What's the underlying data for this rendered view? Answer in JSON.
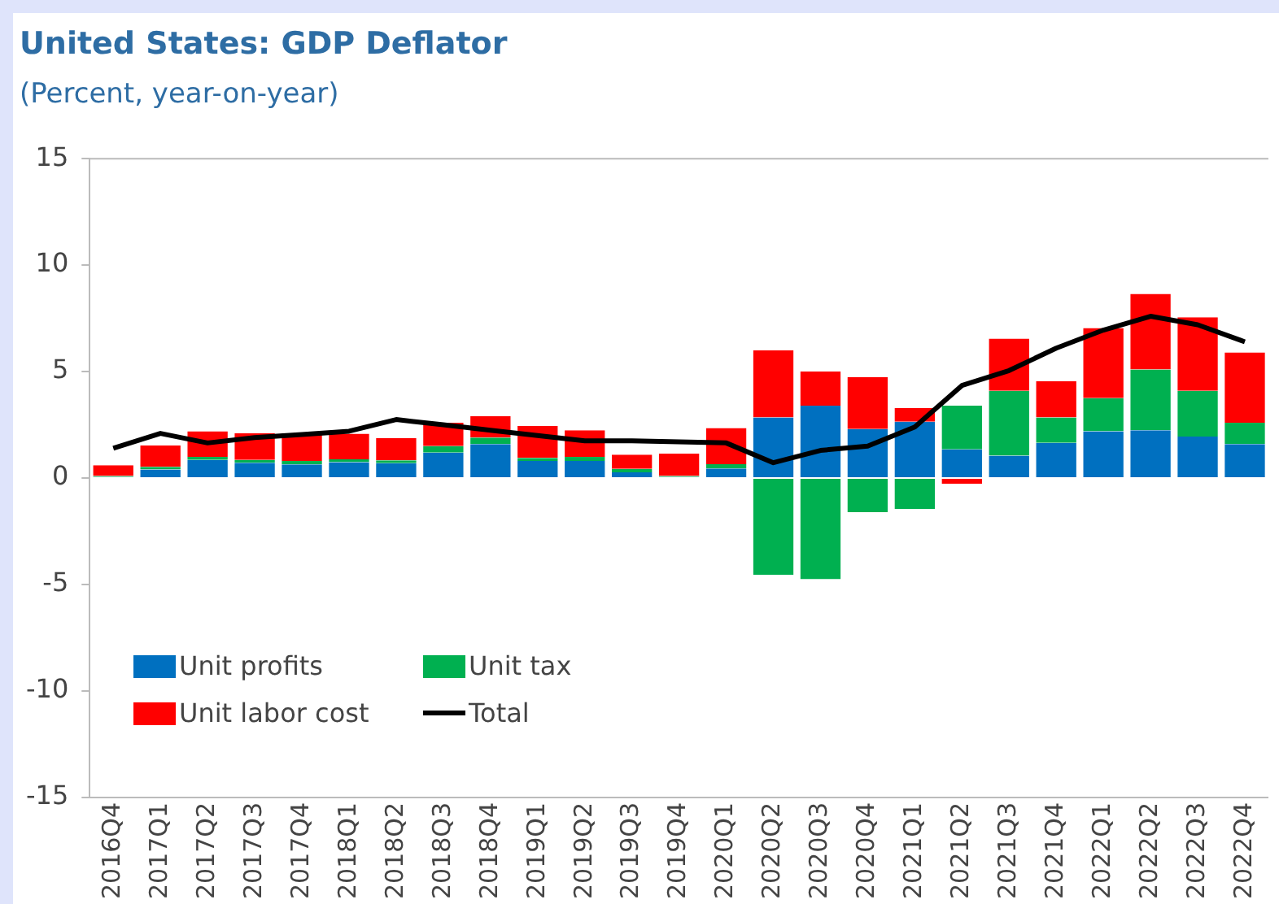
{
  "chart_data": {
    "type": "bar",
    "title": "United States: GDP Deflator",
    "subtitle": "(Percent, year-on-year)",
    "categories": [
      "2016Q4",
      "2017Q1",
      "2017Q2",
      "2017Q3",
      "2017Q4",
      "2018Q1",
      "2018Q2",
      "2018Q3",
      "2018Q4",
      "2019Q1",
      "2019Q2",
      "2019Q3",
      "2019Q4",
      "2020Q1",
      "2020Q2",
      "2020Q3",
      "2020Q4",
      "2021Q1",
      "2021Q2",
      "2021Q3",
      "2021Q4",
      "2022Q1",
      "2022Q2",
      "2022Q3",
      "2022Q4"
    ],
    "stacked": true,
    "series": [
      {
        "name": "Unit profits",
        "color": "#0070c0",
        "values": [
          0.05,
          0.4,
          0.85,
          0.72,
          0.64,
          0.75,
          0.7,
          1.2,
          1.6,
          0.8,
          0.8,
          0.27,
          0.05,
          0.45,
          2.85,
          3.4,
          2.3,
          2.65,
          1.35,
          1.05,
          1.65,
          2.2,
          2.25,
          1.95,
          1.6
        ]
      },
      {
        "name": "Unit tax",
        "color": "#00b050",
        "values": [
          0.05,
          0.13,
          0.15,
          0.13,
          0.16,
          0.13,
          0.13,
          0.3,
          0.3,
          0.15,
          0.2,
          0.16,
          0.05,
          0.2,
          -4.55,
          -4.75,
          -1.6,
          -1.45,
          2.05,
          3.05,
          1.2,
          1.55,
          2.85,
          2.15,
          1.0
        ]
      },
      {
        "name": "Unit labor cost",
        "color": "#ff0000",
        "values": [
          0.5,
          1.0,
          1.2,
          1.25,
          1.3,
          1.2,
          1.05,
          1.1,
          1.0,
          1.5,
          1.25,
          0.67,
          1.05,
          1.7,
          3.15,
          1.6,
          2.45,
          0.65,
          -0.27,
          2.45,
          1.7,
          3.3,
          3.55,
          3.45,
          3.3
        ]
      },
      {
        "name": "Total",
        "type": "line",
        "color": "#000000",
        "values": [
          1.4,
          2.1,
          1.65,
          1.9,
          2.05,
          2.2,
          2.75,
          2.5,
          2.25,
          2.0,
          1.75,
          1.75,
          1.7,
          1.65,
          0.72,
          1.3,
          1.5,
          2.4,
          4.35,
          5.05,
          6.1,
          6.95,
          7.6,
          7.2,
          6.4
        ]
      }
    ],
    "ylim": [
      -15,
      15
    ],
    "yticks": [
      -15,
      -10,
      -5,
      0,
      5,
      10,
      15
    ],
    "grid": false,
    "legend": "bottom left",
    "marker": "none"
  }
}
